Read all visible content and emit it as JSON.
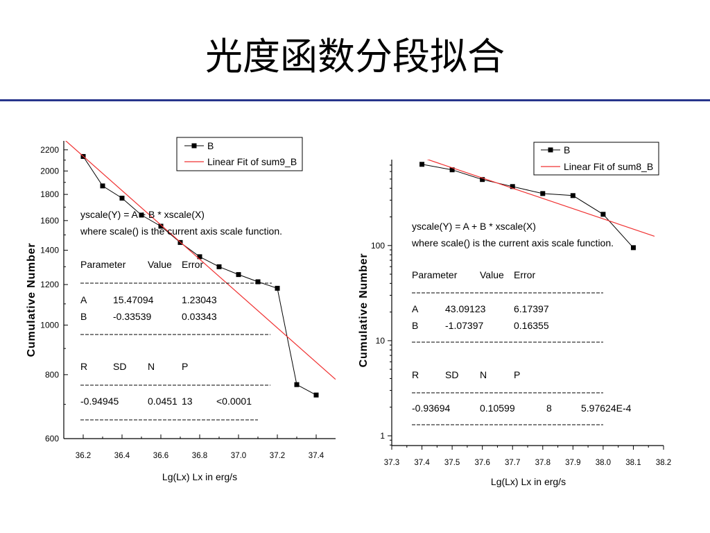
{
  "slide": {
    "title": "光度函数分段拟合"
  },
  "colors": {
    "title_rule": "#27358c"
  },
  "chart_data": [
    {
      "type": "line",
      "xlabel": "Lg(Lx) Lx in erg/s",
      "ylabel": "Cumulative Number",
      "xlim": [
        36.1,
        37.5
      ],
      "ylim": [
        600,
        2290
      ],
      "yscale": "log",
      "grid": false,
      "legend": "top-right",
      "xticks": [
        "36.2",
        "36.4",
        "36.6",
        "36.8",
        "37.0",
        "37.2",
        "37.4"
      ],
      "yticks": [
        "600",
        "800",
        "1000",
        "1200",
        "1400",
        "1600",
        "1800",
        "2000",
        "2200"
      ],
      "series": [
        {
          "name": "B",
          "marker": "square",
          "color": "#000000",
          "x": [
            36.2,
            36.3,
            36.4,
            36.5,
            36.6,
            36.7,
            36.8,
            36.9,
            37.0,
            37.1,
            37.2,
            37.3,
            37.4
          ],
          "y": [
            2135,
            1870,
            1770,
            1640,
            1560,
            1450,
            1360,
            1300,
            1255,
            1215,
            1180,
            765,
            730
          ]
        },
        {
          "name": "Linear Fit of sum9_B",
          "color": "#f03030",
          "x": [
            36.1,
            37.5
          ]
        }
      ],
      "fit_report": {
        "equation": "yscale(Y) = A + B * xscale(X)",
        "note": "where scale() is the current axis scale function.",
        "param_headers": [
          "Parameter",
          "Value",
          "Error"
        ],
        "params": [
          [
            "A",
            "15.47094",
            "1.23043"
          ],
          [
            "B",
            "-0.33539",
            "0.03343"
          ]
        ],
        "stat_headers": [
          "R",
          "SD",
          "N",
          "P"
        ],
        "stats": [
          "-0.94945",
          "0.0451",
          "13",
          "<0.0001"
        ]
      }
    },
    {
      "type": "line",
      "xlabel": "Lg(Lx) Lx in erg/s",
      "ylabel": "Cumulative Number",
      "xlim": [
        37.3,
        38.2
      ],
      "ylim": [
        0.79,
        800
      ],
      "yscale": "log",
      "grid": false,
      "legend": "top-right",
      "xticks": [
        "37.3",
        "37.4",
        "37.5",
        "37.6",
        "37.7",
        "37.8",
        "37.9",
        "38.0",
        "38.1",
        "38.2"
      ],
      "yticks": [
        "1",
        "10",
        "100"
      ],
      "series": [
        {
          "name": "B",
          "marker": "square",
          "color": "#000000",
          "x": [
            37.4,
            37.5,
            37.6,
            37.7,
            37.8,
            37.9,
            38.0,
            38.1
          ],
          "y": [
            714,
            625,
            494,
            417,
            352,
            335,
            213,
            95
          ]
        },
        {
          "name": "Linear Fit of sum8_B",
          "color": "#f03030",
          "x": [
            37.41,
            38.17
          ]
        }
      ],
      "fit_report": {
        "equation": "yscale(Y) = A + B * xscale(X)",
        "note": "where scale() is the current axis scale function.",
        "param_headers": [
          "Parameter",
          "Value",
          "Error"
        ],
        "params": [
          [
            "A",
            "43.09123",
            "6.17397"
          ],
          [
            "B",
            "-1.07397",
            "0.16355"
          ]
        ],
        "stat_headers": [
          "R",
          "SD",
          "N",
          "P"
        ],
        "stats": [
          "-0.93694",
          "0.10599",
          "8",
          "5.97624E-4"
        ]
      }
    }
  ]
}
